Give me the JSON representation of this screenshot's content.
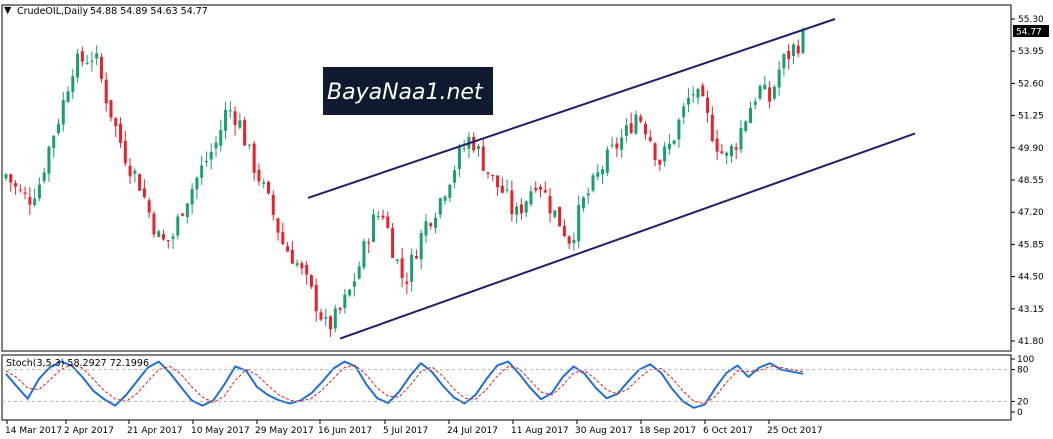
{
  "header": {
    "symbol": "CrudeOIL,Daily",
    "ohlc": "54.88 54.89 54.63 54.77",
    "stoch_label": "Stoch(3,5,3) 58.2927 72.1996"
  },
  "watermark": "BayaNaa1.net",
  "chart_data": [
    {
      "type": "candlestick",
      "title": "CrudeOIL,Daily",
      "price_ticks": [
        "55.30",
        "53.95",
        "52.60",
        "51.25",
        "49.90",
        "48.55",
        "47.20",
        "45.85",
        "44.50",
        "43.15",
        "41.80"
      ],
      "ylim": [
        41.8,
        55.3
      ],
      "last_price": "54.77",
      "date_ticks": [
        "14 Mar 2017",
        "2 Apr 2017",
        "21 Apr 2017",
        "10 May 2017",
        "29 May 2017",
        "16 Jun 2017",
        "5 Jul 2017",
        "24 Jul 2017",
        "11 Aug 2017",
        "30 Aug 2017",
        "18 Sep 2017",
        "6 Oct 2017",
        "25 Oct 2017"
      ],
      "path_close": [
        48.8,
        48.1,
        47.7,
        48.4,
        50.1,
        51.5,
        53.3,
        53.6,
        53.8,
        52.1,
        50.6,
        49.3,
        48.5,
        47.1,
        45.9,
        46.1,
        47.5,
        48.4,
        49.3,
        50.1,
        51.6,
        51.1,
        49.6,
        48.5,
        47.3,
        45.9,
        45.3,
        44.4,
        43.4,
        42.3,
        42.9,
        43.8,
        45.1,
        46.7,
        47.3,
        45.6,
        44.2,
        45.6,
        46.8,
        47.5,
        48.6,
        49.6,
        50.4,
        49.4,
        48.5,
        48.0,
        47.0,
        47.8,
        48.7,
        47.6,
        46.8,
        46.0,
        47.5,
        48.3,
        49.2,
        49.9,
        50.5,
        51.4,
        50.6,
        49.3,
        50.0,
        51.2,
        52.3,
        51.6,
        50.3,
        49.4,
        50.2,
        51.4,
        52.4,
        51.9,
        53.4,
        54.0,
        54.5
      ],
      "channel": {
        "upper": [
          {
            "x": "29 May 2017",
            "y": 47.8
          },
          {
            "x": "1 Nov 2017",
            "y": 55.3
          }
        ],
        "lower": [
          {
            "x": "16 Jun 2017",
            "y": 41.9
          },
          {
            "x": "5 Nov 2017",
            "y": 50.5
          }
        ]
      }
    },
    {
      "type": "line",
      "title": "Stoch(3,5,3) 58.2927 72.1996",
      "levels": [
        "100",
        "80",
        "20",
        "0"
      ],
      "ylim": [
        0,
        100
      ],
      "series": [
        {
          "name": "main",
          "color": "#1e6fd9",
          "values": [
            72,
            48,
            25,
            62,
            84,
            95,
            88,
            66,
            40,
            24,
            12,
            32,
            58,
            84,
            95,
            74,
            48,
            22,
            12,
            22,
            52,
            86,
            78,
            47,
            32,
            22,
            16,
            22,
            36,
            58,
            82,
            95,
            86,
            52,
            26,
            17,
            38,
            68,
            92,
            76,
            50,
            28,
            16,
            32,
            62,
            88,
            95,
            72,
            46,
            24,
            36,
            66,
            86,
            72,
            46,
            26,
            34,
            58,
            80,
            90,
            74,
            44,
            20,
            8,
            14,
            46,
            74,
            88,
            66,
            84,
            92,
            80,
            76,
            72
          ]
        },
        {
          "name": "signal",
          "color": "#e02020",
          "values": [
            78,
            65,
            45,
            42,
            60,
            80,
            89,
            83,
            62,
            40,
            25,
            20,
            35,
            58,
            80,
            86,
            72,
            48,
            28,
            18,
            30,
            60,
            80,
            70,
            50,
            32,
            22,
            20,
            26,
            42,
            64,
            84,
            88,
            70,
            45,
            30,
            28,
            50,
            76,
            85,
            68,
            44,
            26,
            24,
            42,
            68,
            86,
            82,
            60,
            38,
            32,
            50,
            74,
            78,
            62,
            42,
            34,
            44,
            64,
            80,
            82,
            64,
            40,
            20,
            16,
            30,
            56,
            78,
            76,
            78,
            86,
            84,
            80,
            76
          ]
        }
      ]
    }
  ]
}
